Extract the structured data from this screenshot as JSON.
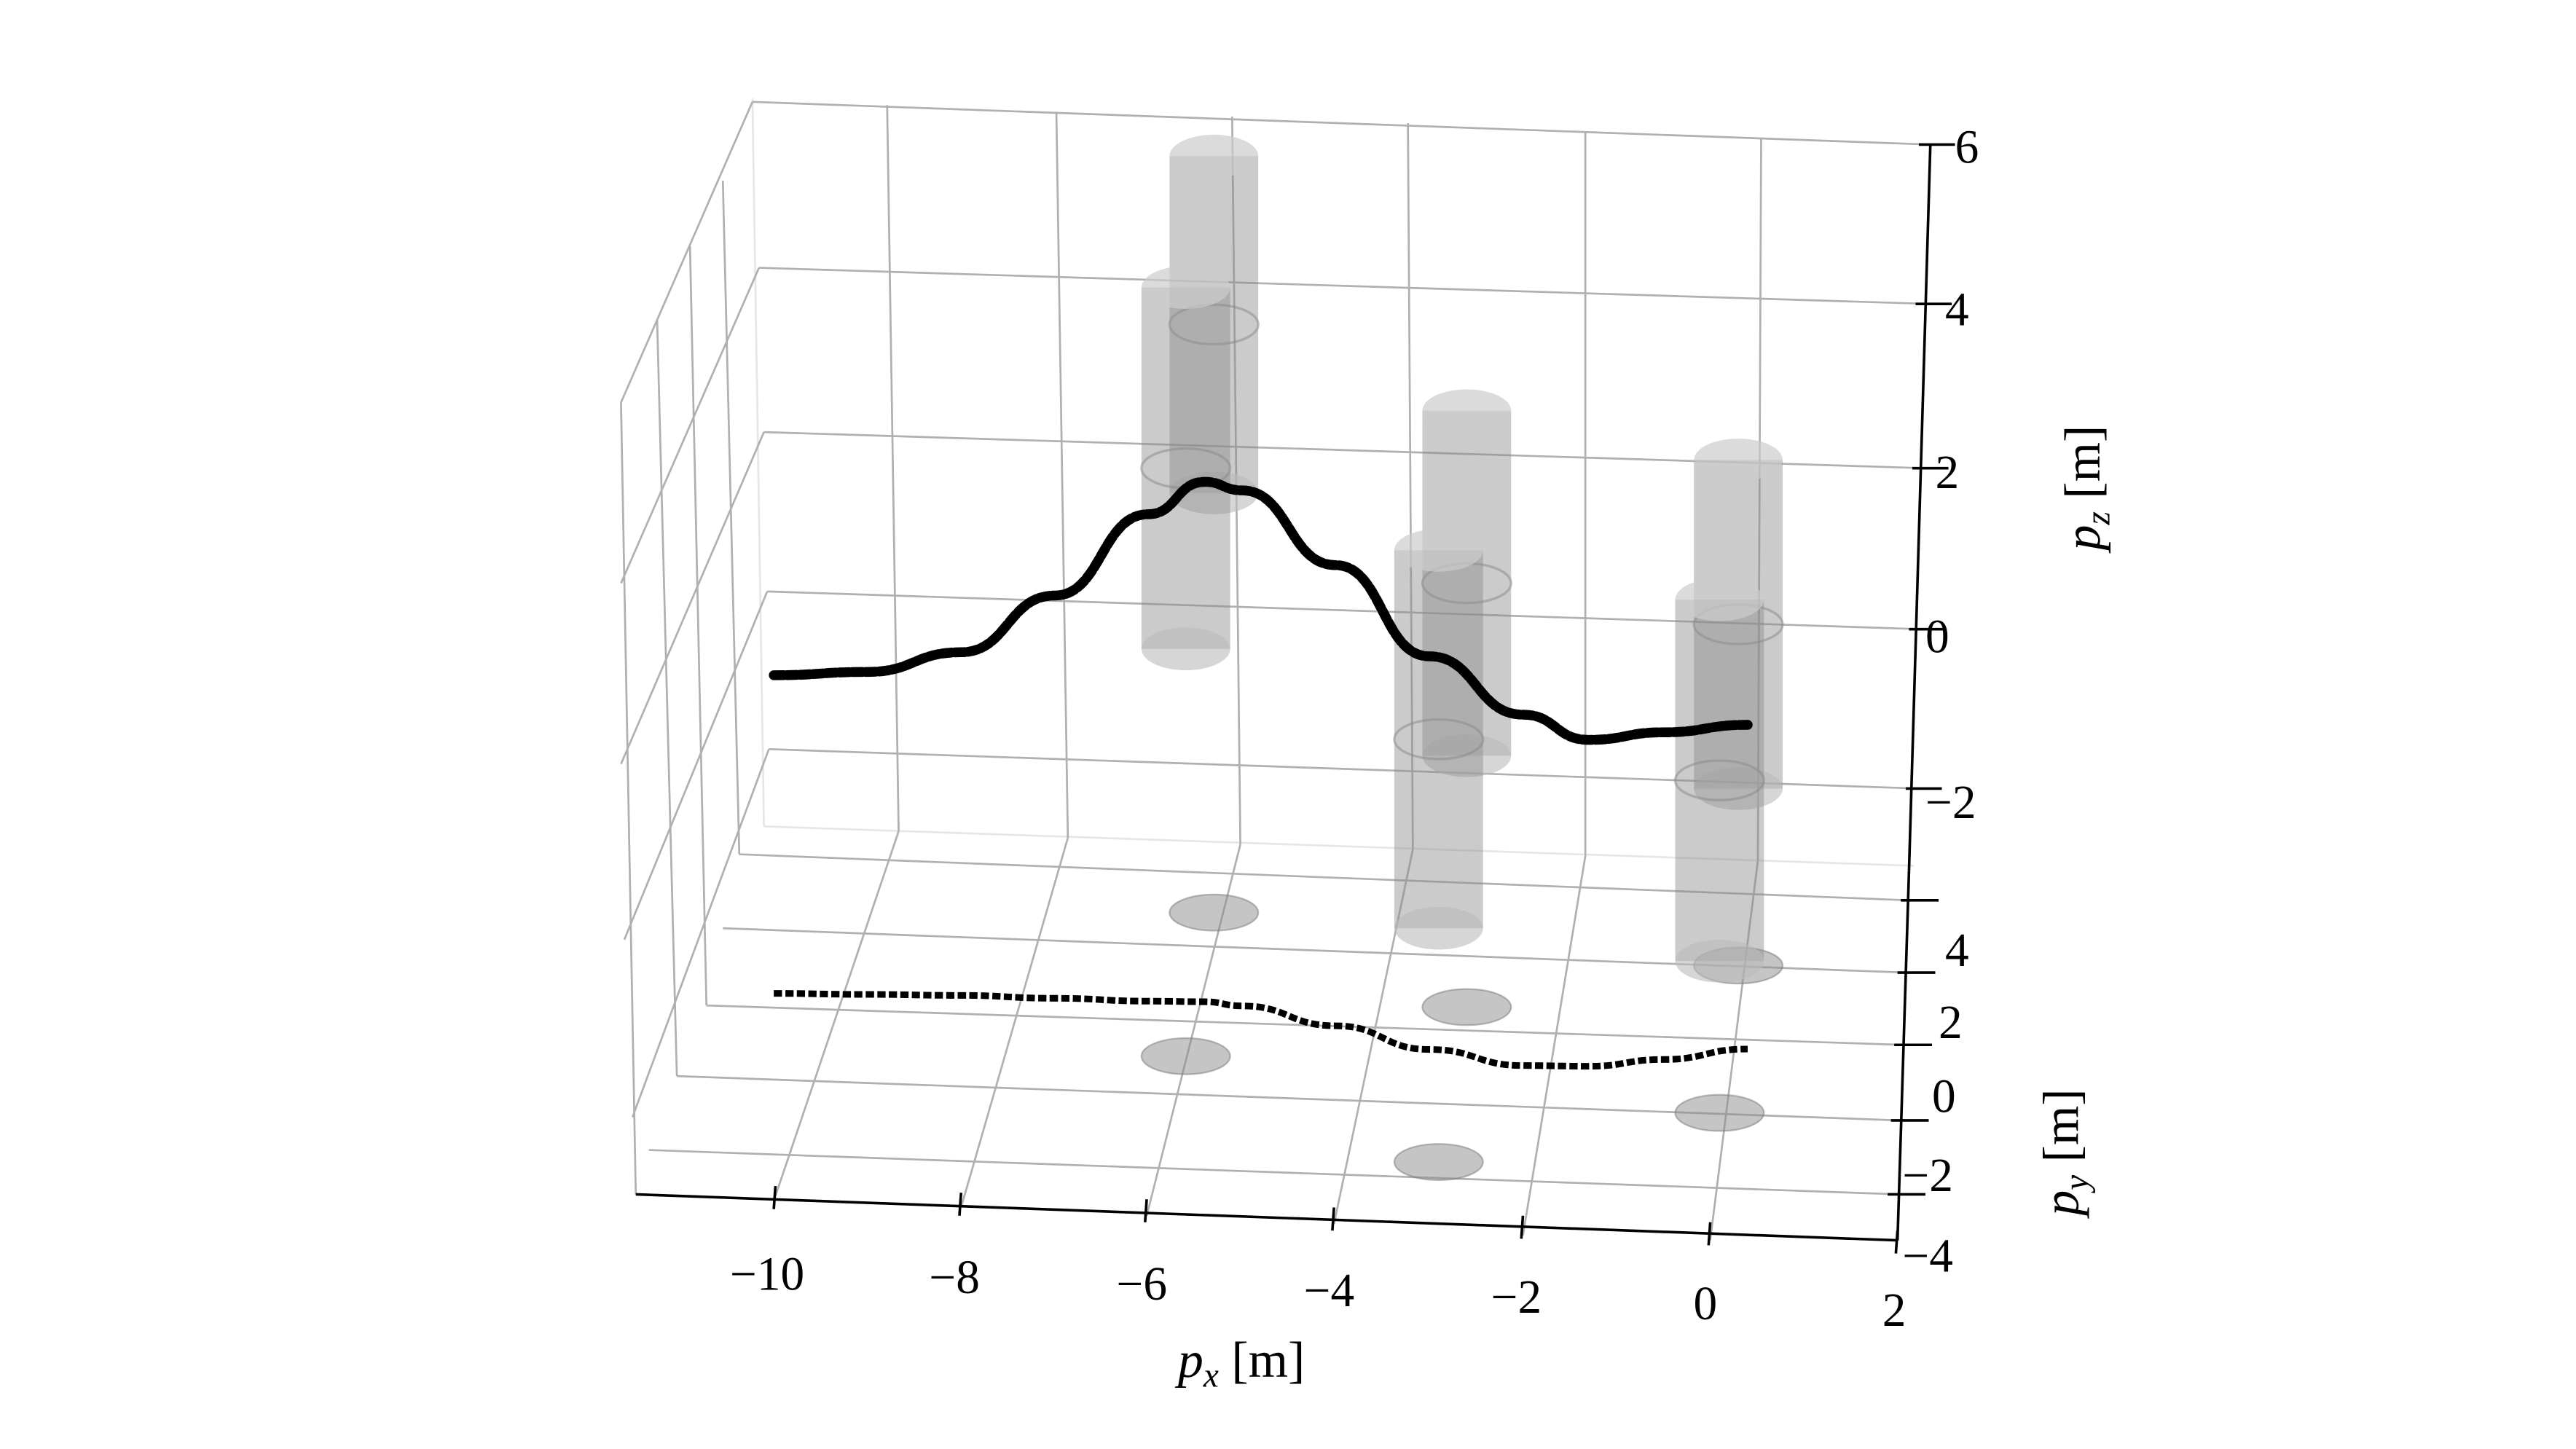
{
  "chart_data": {
    "type": "line3d",
    "xlabel_main": "p",
    "xlabel_sub": "x",
    "xlabel_unit": " [m]",
    "ylabel_main": "p",
    "ylabel_sub": "y",
    "ylabel_unit": " [m]",
    "zlabel_main": "p",
    "zlabel_sub": "z",
    "zlabel_unit": " [m]",
    "xlim": [
      -11.5,
      2
    ],
    "ylim": [
      -4,
      6
    ],
    "zlim": [
      -3,
      6
    ],
    "x_ticks": [
      "−10",
      "−8",
      "−6",
      "−4",
      "−2",
      "0",
      "2"
    ],
    "y_ticks": [
      "4",
      "2",
      "0",
      "−2",
      "−4"
    ],
    "z_ticks": [
      "6",
      "4",
      "2",
      "0",
      "−2"
    ],
    "grid": true,
    "trajectory": {
      "x": [
        -10,
        -9,
        -8,
        -7,
        -6,
        -5.4,
        -5,
        -4,
        -3,
        -2,
        -1.3,
        -0.5,
        0.4
      ],
      "y": [
        3.1,
        3.1,
        3.1,
        3.05,
        3.0,
        3.0,
        2.9,
        2.4,
        1.8,
        1.4,
        1.4,
        1.6,
        1.9
      ],
      "z": [
        -0.5,
        -0.45,
        -0.2,
        0.5,
        1.5,
        1.9,
        1.8,
        0.9,
        -0.2,
        -0.9,
        -1.2,
        -1.1,
        -1.0
      ],
      "color": "#000000",
      "style": "dotted markers",
      "projection_on_xy_plane": true
    },
    "obstacles": [
      {
        "x": -5.3,
        "y": 5.5
      },
      {
        "x": -5.6,
        "y": 1.7
      },
      {
        "x": -2.6,
        "y": 3.0
      },
      {
        "x": -2.9,
        "y": -1.1
      },
      {
        "x": 0.3,
        "y": 4.1
      },
      {
        "x": 0.1,
        "y": 0.2
      }
    ],
    "obstacle_color": "#8c8c8c"
  }
}
